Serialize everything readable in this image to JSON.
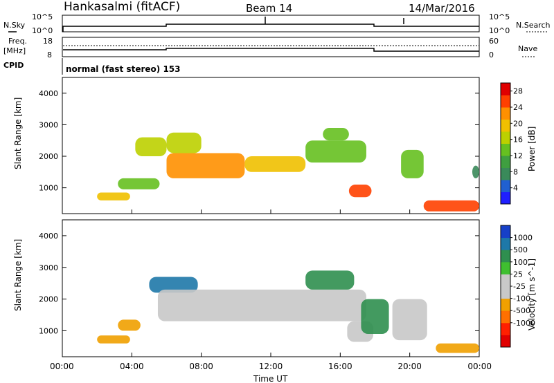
{
  "header": {
    "station": "Hankasalmi (fitACF)",
    "beam": "Beam 14",
    "date": "14/Mar/2016"
  },
  "colors": {
    "power_scale": [
      "#1f1fff",
      "#2060d0",
      "#3a8a5a",
      "#3f9f40",
      "#66c020",
      "#bcd000",
      "#f0c000",
      "#ff9000",
      "#ff4000",
      "#e00000"
    ],
    "velocity_scale": [
      "#1640c8",
      "#1e78a8",
      "#2f8f4f",
      "#3fbf30",
      "#c8c8c8",
      "#c8c8c8",
      "#f0a000",
      "#ff7000",
      "#ff2000",
      "#e00000"
    ],
    "ground_scatter": "#c8c8c8"
  },
  "noise_panel": {
    "left_label": "N.Sky",
    "right_label": "N.Search",
    "tick_top": "10^5",
    "tick_bottom": "10^0"
  },
  "freq_panel": {
    "left_label_1": "Freq.",
    "left_label_2": "[MHz]",
    "left_ticks": [
      "18",
      "8"
    ],
    "right_label": "Nave",
    "right_ticks": [
      "60",
      "0"
    ]
  },
  "cpid": {
    "label": "CPID",
    "text": "normal (fast stereo) 153"
  },
  "time_axis": {
    "label": "Time UT",
    "ticks": [
      "00:00",
      "04:00",
      "08:00",
      "12:00",
      "16:00",
      "20:00",
      "00:00"
    ]
  },
  "chart_data": [
    {
      "type": "heatmap",
      "title": "Power",
      "xlabel": "Time UT",
      "ylabel": "Slant Range [km]",
      "y_ticks": [
        "1000",
        "2000",
        "3000",
        "4000"
      ],
      "ylim": [
        180,
        4500
      ],
      "xlim_hours": [
        0,
        24
      ],
      "colorbar": {
        "label": "Power [dB]",
        "ticks": [
          "4",
          "8",
          "12",
          "16",
          "20",
          "24",
          "28"
        ],
        "range": [
          0,
          30
        ]
      },
      "regions": [
        {
          "t0": 2.0,
          "t1": 3.9,
          "r0": 600,
          "r1": 850,
          "value": 20
        },
        {
          "t0": 3.2,
          "t1": 5.6,
          "r0": 950,
          "r1": 1300,
          "value": 14
        },
        {
          "t0": 4.2,
          "t1": 6.0,
          "r0": 2000,
          "r1": 2600,
          "value": 16
        },
        {
          "t0": 6.0,
          "t1": 8.0,
          "r0": 2100,
          "r1": 2750,
          "value": 16
        },
        {
          "t0": 6.0,
          "t1": 10.5,
          "r0": 1300,
          "r1": 2100,
          "value": 22
        },
        {
          "t0": 10.5,
          "t1": 14.0,
          "r0": 1500,
          "r1": 2000,
          "value": 20
        },
        {
          "t0": 14.0,
          "t1": 17.5,
          "r0": 1800,
          "r1": 2500,
          "value": 14
        },
        {
          "t0": 15.0,
          "t1": 16.5,
          "r0": 2500,
          "r1": 2900,
          "value": 12
        },
        {
          "t0": 16.5,
          "t1": 17.8,
          "r0": 700,
          "r1": 1100,
          "value": 24
        },
        {
          "t0": 19.5,
          "t1": 20.8,
          "r0": 1300,
          "r1": 2200,
          "value": 12
        },
        {
          "t0": 20.8,
          "t1": 24.0,
          "r0": 250,
          "r1": 600,
          "value": 26
        },
        {
          "t0": 23.6,
          "t1": 24.0,
          "r0": 1300,
          "r1": 1700,
          "value": 8
        }
      ]
    },
    {
      "type": "heatmap",
      "title": "Velocity",
      "xlabel": "Time UT",
      "ylabel": "Slant Range [km]",
      "y_ticks": [
        "1000",
        "2000",
        "3000",
        "4000"
      ],
      "ylim": [
        180,
        4500
      ],
      "xlim_hours": [
        0,
        24
      ],
      "colorbar": {
        "label": "Velocity [m s^-1]",
        "ticks": [
          "1000",
          "500",
          "100",
          "25",
          "-25",
          "-100",
          "-500",
          "-1000"
        ]
      },
      "regions": [
        {
          "t0": 2.0,
          "t1": 3.9,
          "r0": 600,
          "r1": 850,
          "value": -150
        },
        {
          "t0": 3.2,
          "t1": 4.5,
          "r0": 1000,
          "r1": 1350,
          "value": -150
        },
        {
          "t0": 5.0,
          "t1": 7.8,
          "r0": 2200,
          "r1": 2700,
          "value": 600
        },
        {
          "t0": 5.5,
          "t1": 17.5,
          "r0": 1300,
          "r1": 2300,
          "value": 0,
          "ground_scatter": true
        },
        {
          "t0": 14.0,
          "t1": 16.8,
          "r0": 2300,
          "r1": 2900,
          "value": 100
        },
        {
          "t0": 16.4,
          "t1": 17.9,
          "r0": 650,
          "r1": 1300,
          "value": 0,
          "ground_scatter": true
        },
        {
          "t0": 17.2,
          "t1": 18.8,
          "r0": 900,
          "r1": 2000,
          "value": 100
        },
        {
          "t0": 19.0,
          "t1": 21.0,
          "r0": 700,
          "r1": 2000,
          "value": 0,
          "ground_scatter": true
        },
        {
          "t0": 21.5,
          "t1": 24.0,
          "r0": 300,
          "r1": 600,
          "value": -500
        }
      ]
    }
  ]
}
